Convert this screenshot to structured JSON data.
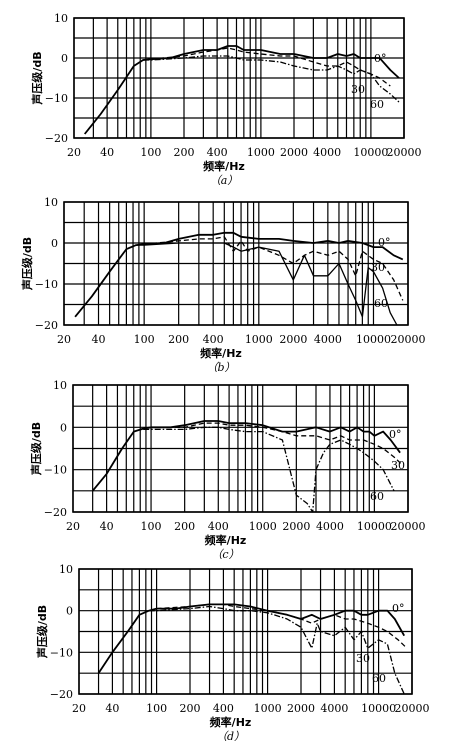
{
  "chart_data": [
    {
      "type": "line",
      "caption": "（a）",
      "xlabel": "频率/Hz",
      "ylabel": "声压级/dB",
      "x_ticks": [
        20,
        40,
        100,
        200,
        400,
        1000,
        2000,
        4000,
        10000,
        20000
      ],
      "y_ticks": [
        10,
        0,
        -10,
        -20
      ],
      "xlim": [
        20,
        20000
      ],
      "ylim": [
        -20,
        10
      ],
      "xscale": "log",
      "grid": true,
      "series": [
        {
          "name": "0°",
          "style": "solid",
          "x": [
            25,
            35,
            50,
            70,
            85,
            100,
            150,
            200,
            300,
            400,
            500,
            600,
            700,
            1000,
            1500,
            2000,
            3000,
            4000,
            5000,
            6000,
            7000,
            8000,
            10000,
            12000,
            15000,
            18000
          ],
          "y": [
            -19,
            -14,
            -8,
            -2,
            -0.5,
            -0.3,
            0,
            1,
            2,
            2,
            3,
            3,
            2,
            2,
            1,
            1,
            0,
            0,
            1,
            0.5,
            1,
            0,
            0,
            0,
            -3,
            -5
          ]
        },
        {
          "name": "30",
          "style": "dashed",
          "x": [
            85,
            100,
            200,
            300,
            400,
            500,
            600,
            700,
            1000,
            1500,
            2000,
            3000,
            4000,
            5000,
            6000,
            7000,
            8000,
            10000,
            12000,
            15000
          ],
          "y": [
            -0.5,
            -0.3,
            0.5,
            1.5,
            2,
            2.5,
            2,
            1.5,
            1,
            0.5,
            0.5,
            -1,
            -2,
            -2,
            -1,
            -2,
            -3,
            -4,
            -5,
            -7
          ]
        },
        {
          "name": "60",
          "style": "dashdot",
          "x": [
            85,
            100,
            200,
            300,
            400,
            500,
            600,
            700,
            1000,
            1500,
            2000,
            3000,
            4000,
            5000,
            6000,
            7000,
            8000,
            10000,
            12000,
            15000,
            18000
          ],
          "y": [
            -0.5,
            -0.5,
            0,
            0.5,
            0.5,
            0.5,
            0,
            -0.5,
            -0.5,
            -1,
            -2,
            -3,
            -3,
            -2,
            -3,
            -4,
            -3,
            -4,
            -7,
            -9,
            -11
          ]
        }
      ]
    },
    {
      "type": "line",
      "caption": "（b）",
      "xlabel": "频率/Hz",
      "ylabel": "声压级/dB",
      "x_ticks": [
        20,
        40,
        100,
        200,
        400,
        1000,
        2000,
        4000,
        10000,
        20000
      ],
      "y_ticks": [
        10,
        0,
        -10,
        -20
      ],
      "xlim": [
        20,
        20000
      ],
      "ylim": [
        -20,
        10
      ],
      "xscale": "log",
      "grid": true,
      "series": [
        {
          "name": "0°",
          "style": "solid",
          "x": [
            25,
            35,
            50,
            70,
            85,
            100,
            150,
            200,
            300,
            400,
            500,
            600,
            700,
            1000,
            1500,
            2000,
            3000,
            4000,
            5000,
            6000,
            8000,
            10000,
            12000,
            15000,
            18000
          ],
          "y": [
            -18,
            -13,
            -7,
            -1.5,
            -0.5,
            -0.3,
            0,
            1,
            2,
            2,
            2.5,
            2.5,
            1.5,
            1,
            1,
            0.5,
            0,
            0.5,
            0,
            0.5,
            0,
            -1,
            -1,
            -3,
            -4
          ]
        },
        {
          "name": "30",
          "style": "dashed",
          "x": [
            85,
            100,
            200,
            300,
            400,
            500,
            600,
            700,
            800,
            1000,
            1500,
            2000,
            2500,
            3000,
            4000,
            5000,
            6000,
            7000,
            8000,
            10000,
            12000,
            15000,
            18000
          ],
          "y": [
            -0.5,
            -0.3,
            0.5,
            1,
            1,
            1.5,
            -2,
            0.5,
            -2,
            -1,
            -3,
            -5,
            -3,
            -2,
            -3,
            -2,
            -4,
            -8,
            -2,
            -4,
            -5,
            -9,
            -14
          ]
        },
        {
          "name": "60",
          "style": "solid",
          "x": [
            85,
            100,
            200,
            300,
            400,
            500,
            600,
            700,
            1000,
            1500,
            2000,
            2500,
            3000,
            4000,
            5000,
            6000,
            7000,
            8000,
            9000,
            10000,
            12000,
            14000,
            16000
          ],
          "y": [
            -0.5,
            -0.5,
            0,
            0,
            0,
            0,
            -1,
            -2,
            -1,
            -2,
            -9,
            -3,
            -8,
            -8,
            -5,
            -10,
            -14,
            -18,
            -6,
            -7,
            -11,
            -17,
            -20
          ]
        }
      ]
    },
    {
      "type": "line",
      "caption": "（c）",
      "xlabel": "频率/Hz",
      "ylabel": "声压级/dB",
      "x_ticks": [
        20,
        40,
        100,
        200,
        400,
        1000,
        2000,
        4000,
        10000,
        20000
      ],
      "y_ticks": [
        10,
        0,
        -10,
        -20
      ],
      "xlim": [
        20,
        20000
      ],
      "ylim": [
        -20,
        10
      ],
      "xscale": "log",
      "grid": true,
      "series": [
        {
          "name": "0°",
          "style": "solid",
          "x": [
            30,
            40,
            55,
            70,
            85,
            100,
            150,
            200,
            300,
            400,
            500,
            700,
            1000,
            1500,
            2000,
            3000,
            4000,
            5000,
            6000,
            7000,
            8000,
            9000,
            10000,
            12000,
            14000,
            17000
          ],
          "y": [
            -15,
            -11,
            -5,
            -1,
            -0.3,
            0,
            0,
            0.5,
            1.5,
            1.5,
            1,
            1,
            0.5,
            -1,
            -1,
            0,
            -1,
            0,
            -1,
            0,
            -1,
            -1,
            -2,
            -1,
            -3,
            -6
          ]
        },
        {
          "name": "30",
          "style": "dashed",
          "x": [
            85,
            100,
            200,
            300,
            400,
            500,
            700,
            1000,
            1500,
            2000,
            3000,
            4000,
            5000,
            6000,
            8000,
            10000,
            12000,
            15000,
            18000
          ],
          "y": [
            -0.3,
            0,
            0,
            1,
            1,
            0.5,
            0.5,
            0,
            -1,
            -2,
            -2,
            -3,
            -2,
            -3,
            -3,
            -4,
            -5,
            -7,
            -9
          ]
        },
        {
          "name": "60",
          "style": "dashdot",
          "x": [
            85,
            100,
            200,
            300,
            400,
            500,
            700,
            1000,
            1500,
            2000,
            2500,
            2800,
            3000,
            3500,
            4000,
            5000,
            6000,
            7000,
            8000,
            10000,
            12000,
            15000
          ],
          "y": [
            -0.5,
            -0.5,
            -0.5,
            0,
            0,
            -0.5,
            -1,
            -1,
            -3,
            -16,
            -18,
            -20,
            -10,
            -6,
            -4,
            -3,
            -4,
            -5,
            -6,
            -8,
            -10,
            -15
          ]
        }
      ]
    },
    {
      "type": "line",
      "caption": "（d）",
      "xlabel": "频率/Hz",
      "ylabel": "声压级/dB",
      "x_ticks": [
        20,
        40,
        100,
        200,
        400,
        1000,
        2000,
        4000,
        10000,
        20000
      ],
      "y_ticks": [
        10,
        0,
        -10,
        -20
      ],
      "xlim": [
        20,
        20000
      ],
      "ylim": [
        -20,
        10
      ],
      "xscale": "log",
      "grid": true,
      "series": [
        {
          "name": "0°",
          "style": "solid",
          "x": [
            30,
            40,
            55,
            70,
            85,
            100,
            150,
            200,
            300,
            400,
            500,
            700,
            1000,
            1500,
            2000,
            2500,
            3000,
            4000,
            5000,
            6000,
            7000,
            8000,
            10000,
            12000,
            14000,
            17000
          ],
          "y": [
            -15,
            -10,
            -5,
            -1,
            0,
            0.5,
            0.5,
            1,
            1.5,
            1.5,
            1.5,
            1,
            0,
            -1,
            -2,
            -1,
            -2,
            -1,
            0,
            0,
            -1,
            -1,
            0,
            0,
            -2,
            -6
          ]
        },
        {
          "name": "30",
          "style": "dashed",
          "x": [
            85,
            100,
            200,
            300,
            400,
            500,
            700,
            1000,
            1500,
            2000,
            2500,
            3000,
            4000,
            5000,
            6000,
            8000,
            10000,
            12000,
            15000,
            18000
          ],
          "y": [
            0,
            0.5,
            1,
            1.5,
            1.5,
            1,
            0.5,
            0,
            -1,
            -2,
            -3,
            -2,
            -1,
            -2,
            -2,
            -3,
            -4,
            -5,
            -7,
            -9
          ]
        },
        {
          "name": "60",
          "style": "dashdot",
          "x": [
            85,
            100,
            200,
            300,
            400,
            500,
            700,
            1000,
            1500,
            2000,
            2500,
            2800,
            3000,
            4000,
            5000,
            6000,
            7000,
            8000,
            10000,
            12000,
            14000,
            17000
          ],
          "y": [
            0,
            0,
            0.5,
            1,
            0.5,
            0,
            0,
            -0.5,
            -2,
            -4,
            -9,
            -3,
            -5,
            -6,
            -4,
            -7,
            -5,
            -9,
            -7,
            -8,
            -15,
            -20
          ]
        }
      ]
    }
  ]
}
